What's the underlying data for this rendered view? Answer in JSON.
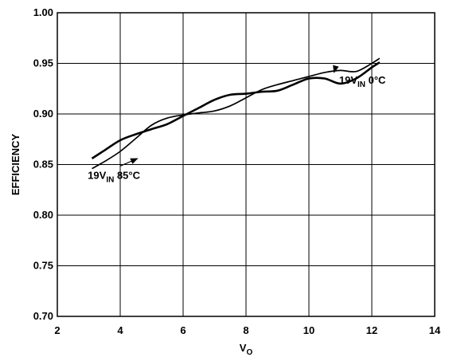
{
  "chart_data": {
    "type": "line",
    "title": "",
    "xlabel": {
      "main": "V",
      "sub": "O"
    },
    "ylabel": "EFFICIENCY",
    "xlim": [
      2,
      14
    ],
    "ylim": [
      0.7,
      1.0
    ],
    "x_ticks": [
      "2",
      "4",
      "6",
      "8",
      "10",
      "12",
      "14"
    ],
    "y_ticks": [
      "0.70",
      "0.75",
      "0.80",
      "0.85",
      "0.90",
      "0.95",
      "1.00"
    ],
    "grid": true,
    "legend": "none",
    "series": [
      {
        "x": [
          3.1,
          3.5,
          4.0,
          4.5,
          5.0,
          5.5,
          6.0,
          6.5,
          7.0,
          7.5,
          8.0,
          8.5,
          9.0,
          9.5,
          10.0,
          10.5,
          11.0,
          11.5,
          12.0,
          12.25
        ],
        "y": [
          0.856,
          0.864,
          0.874,
          0.88,
          0.885,
          0.89,
          0.898,
          0.906,
          0.914,
          0.919,
          0.92,
          0.922,
          0.923,
          0.929,
          0.935,
          0.935,
          0.93,
          0.935,
          0.946,
          0.951
        ]
      },
      {
        "x": [
          3.1,
          3.5,
          4.0,
          4.5,
          5.0,
          5.5,
          6.0,
          6.5,
          7.0,
          7.5,
          8.0,
          8.5,
          9.0,
          9.5,
          10.0,
          10.5,
          11.0,
          11.5,
          12.0,
          12.25
        ],
        "y": [
          0.846,
          0.853,
          0.863,
          0.876,
          0.889,
          0.896,
          0.899,
          0.901,
          0.903,
          0.908,
          0.916,
          0.924,
          0.929,
          0.933,
          0.937,
          0.941,
          0.943,
          0.942,
          0.95,
          0.955
        ]
      }
    ],
    "annotations": [
      {
        "main": "19V",
        "sub": "IN",
        "rest": " 0°C",
        "x": 11.7,
        "y": 0.93,
        "arrow_to": [
          10.8,
          0.941
        ]
      },
      {
        "main": "19V",
        "sub": "IN",
        "rest": " 85°C",
        "x": 3.8,
        "y": 0.836,
        "arrow_to": [
          4.55,
          0.856
        ]
      }
    ]
  }
}
